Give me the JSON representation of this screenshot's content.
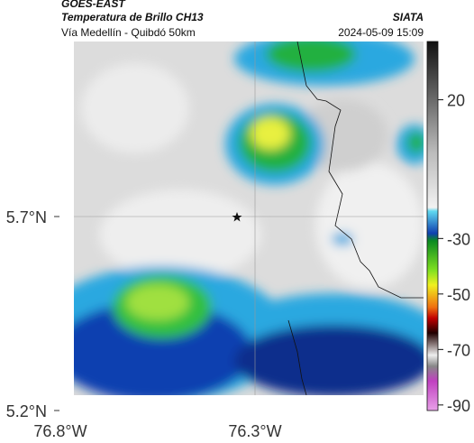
{
  "header": {
    "title": "GOES-EAST",
    "subtitle": "Temperatura de Brillo CH13",
    "region": "Vía Medellín - Quibdó 50km",
    "source": "SIATA",
    "datetime": "2024-05-09 15:09"
  },
  "map": {
    "x_ticks": [
      {
        "value": -76.8,
        "label": "76.8°W"
      },
      {
        "value": -76.3,
        "label": "76.3°W"
      }
    ],
    "y_ticks": [
      {
        "value": 5.7,
        "label": "5.7°N"
      },
      {
        "value": 5.2,
        "label": "5.2°N"
      }
    ]
  },
  "colorbar": {
    "range": [
      41,
      -92
    ],
    "ticks": [
      20,
      -30,
      -50,
      -70,
      -90
    ]
  }
}
